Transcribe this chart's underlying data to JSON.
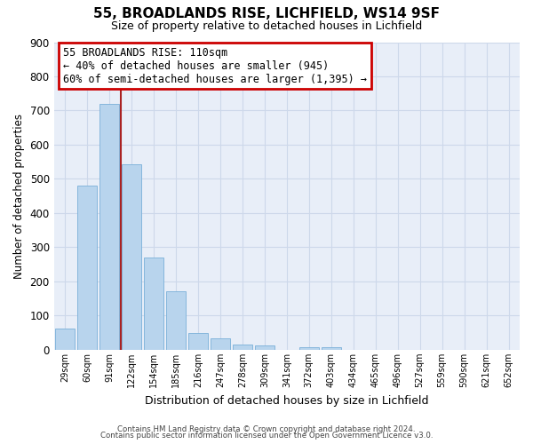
{
  "title": "55, BROADLANDS RISE, LICHFIELD, WS14 9SF",
  "subtitle": "Size of property relative to detached houses in Lichfield",
  "xlabel": "Distribution of detached houses by size in Lichfield",
  "ylabel": "Number of detached properties",
  "bin_labels": [
    "29sqm",
    "60sqm",
    "91sqm",
    "122sqm",
    "154sqm",
    "185sqm",
    "216sqm",
    "247sqm",
    "278sqm",
    "309sqm",
    "341sqm",
    "372sqm",
    "403sqm",
    "434sqm",
    "465sqm",
    "496sqm",
    "527sqm",
    "559sqm",
    "590sqm",
    "621sqm",
    "652sqm"
  ],
  "bar_values": [
    62,
    480,
    720,
    543,
    271,
    172,
    48,
    33,
    15,
    13,
    0,
    8,
    7,
    0,
    0,
    0,
    0,
    0,
    0,
    0,
    0
  ],
  "bar_color": "#b8d4ed",
  "bar_edge_color": "#7ab0d8",
  "vline_color": "#aa2222",
  "ylim": [
    0,
    900
  ],
  "yticks": [
    0,
    100,
    200,
    300,
    400,
    500,
    600,
    700,
    800,
    900
  ],
  "annotation_title": "55 BROADLANDS RISE: 110sqm",
  "annotation_line1": "← 40% of detached houses are smaller (945)",
  "annotation_line2": "60% of semi-detached houses are larger (1,395) →",
  "annotation_box_color": "#cc0000",
  "grid_color": "#cdd8ea",
  "bg_color": "#e8eef8",
  "footer1": "Contains HM Land Registry data © Crown copyright and database right 2024.",
  "footer2": "Contains public sector information licensed under the Open Government Licence v3.0."
}
